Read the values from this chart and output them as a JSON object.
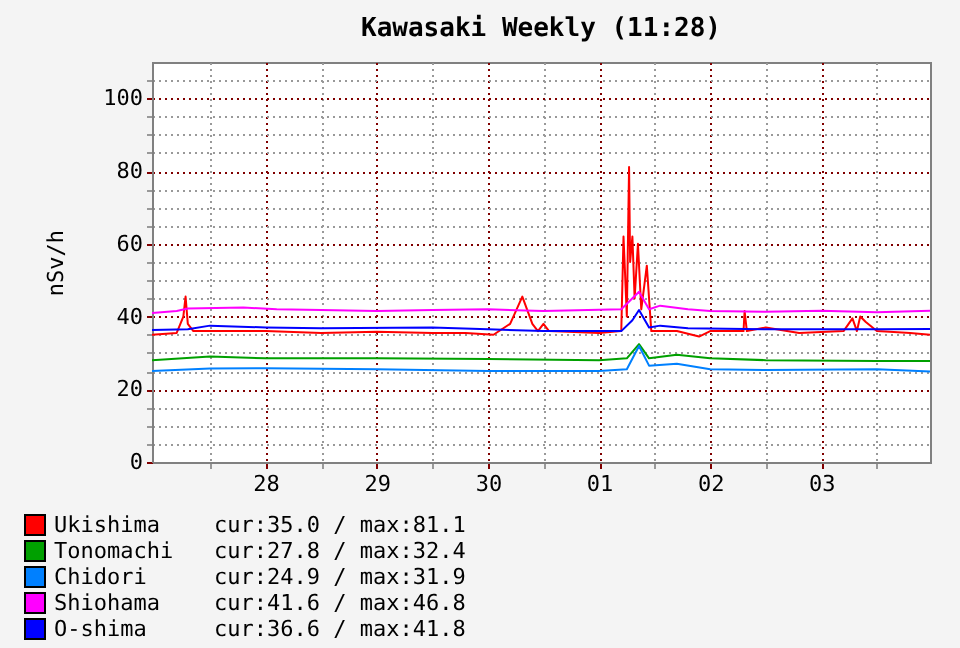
{
  "chart_data": {
    "type": "line",
    "title": "Kawasaki Weekly (11:28)",
    "ylabel": "nSv/h",
    "xlim": [
      "--04-27T11:28",
      "--05-04T11:28"
    ],
    "ylim": [
      0,
      110
    ],
    "xticks": [
      {
        "value": "--04-28",
        "label": null
      },
      {
        "value": "--04-28T12:00",
        "label": "28"
      },
      {
        "value": "--04-29",
        "label": null
      },
      {
        "value": "--04-29T12:00",
        "label": "29"
      },
      {
        "value": "--04-30",
        "label": null
      },
      {
        "value": "--04-30T12:00",
        "label": "30"
      },
      {
        "value": "--05-01",
        "label": null
      },
      {
        "value": "--05-01T12:00",
        "label": "01"
      },
      {
        "value": "--05-02",
        "label": null
      },
      {
        "value": "--05-02T12:00",
        "label": "02"
      },
      {
        "value": "--05-03",
        "label": null
      },
      {
        "value": "--05-03T12:00",
        "label": "03"
      },
      {
        "value": "--05-04",
        "label": null
      }
    ],
    "yticks": [
      0,
      {
        "value": 5,
        "label": null
      },
      {
        "value": 10,
        "label": null
      },
      {
        "value": 15,
        "label": null
      },
      20,
      {
        "value": 25,
        "label": null
      },
      {
        "value": 30,
        "label": null
      },
      {
        "value": 35,
        "label": null
      },
      40,
      {
        "value": 45,
        "label": null
      },
      {
        "value": 50,
        "label": null
      },
      {
        "value": 55,
        "label": null
      },
      60,
      {
        "value": 65,
        "label": null
      },
      {
        "value": 70,
        "label": null
      },
      {
        "value": 75,
        "label": null
      },
      80,
      {
        "value": 85,
        "label": null
      },
      {
        "value": 90,
        "label": null
      },
      {
        "value": 95,
        "label": null
      },
      100,
      {
        "value": 105,
        "label": null
      }
    ],
    "grid": true,
    "legend": "bottom",
    "line_style": "solid",
    "marker": "none",
    "annotations": [
      "cur:35.0 / max:81.1",
      "cur:27.8 / max:32.4",
      "cur:24.9 / max:31.9",
      "cur:41.6 / max:46.8",
      "cur:36.6 / max:41.8"
    ],
    "series": [
      {
        "name": "Ukishima",
        "color": "#ff0000",
        "x": [
          "--04-27T11:28",
          "--04-27T16:48",
          "--04-27T18:14",
          "--04-27T18:43",
          "--04-27T19:12",
          "--04-27T20:24",
          "--04-28T12:00",
          "--04-29",
          "--04-29T12:00",
          "--04-30",
          "--04-30T07:12",
          "--04-30T13:12",
          "--04-30T16:48",
          "--04-30T19:26",
          "--04-30T21:36",
          "--04-30T22:48",
          "--05-01",
          "--05-01T01:12",
          "--05-01T12:00",
          "--05-01T16:48",
          "--05-01T17:17",
          "--05-01T18:00",
          "--05-01T18:29",
          "--05-01T18:43",
          "--05-01T19:12",
          "--05-01T19:41",
          "--05-01T20:24",
          "--05-01T21:07",
          "--05-01T22:19",
          "--05-01T23:17",
          "--05-02T04:48",
          "--05-02T09:36",
          "--05-02T12:00",
          "--05-02T19:12",
          "--05-02T19:26",
          "--05-02T19:55",
          "--05-03",
          "--05-03T07:12",
          "--05-03T16:48",
          "--05-03T18:43",
          "--05-03T19:41",
          "--05-03T20:24",
          "--05-03T21:36",
          "--05-04",
          "--05-04T07:12",
          "--05-04T11:28"
        ],
        "values": [
          35.0,
          35.5,
          40,
          45.5,
          38,
          36,
          36,
          35.5,
          35.8,
          35.5,
          35.5,
          35,
          38,
          45.5,
          38,
          36,
          38,
          36,
          35.5,
          36,
          62,
          40,
          81.1,
          55,
          62,
          45,
          60,
          42,
          54,
          36,
          36,
          34.5,
          36,
          36,
          41.5,
          36,
          37,
          35.5,
          36,
          39.5,
          36,
          40,
          38.5,
          36,
          35.5,
          35.0
        ]
      },
      {
        "name": "Tonomachi",
        "color": "#00a000",
        "x": [
          "--04-27T11:28",
          "--04-28",
          "--04-28T12:00",
          "--04-29T12:00",
          "--04-30T12:00",
          "--05-01T12:00",
          "--05-01T18:00",
          "--05-01T20:38",
          "--05-01T22:48",
          "--05-02T04:48",
          "--05-02T12:00",
          "--05-03",
          "--05-04",
          "--05-04T11:28"
        ],
        "values": [
          28.0,
          29.0,
          28.5,
          28.5,
          28.3,
          28.0,
          28.5,
          32.4,
          28.5,
          29.5,
          28.5,
          28.0,
          27.8,
          27.8
        ]
      },
      {
        "name": "Chidori",
        "color": "#0080ff",
        "x": [
          "--04-27T11:28",
          "--04-28",
          "--04-28T12:00",
          "--04-29T12:00",
          "--04-30T12:00",
          "--05-01T12:00",
          "--05-01T18:00",
          "--05-01T20:38",
          "--05-01T22:48",
          "--05-02T04:48",
          "--05-02T12:00",
          "--05-03",
          "--05-04",
          "--05-04T11:28"
        ],
        "values": [
          25.0,
          25.7,
          25.8,
          25.5,
          25.0,
          25.0,
          25.5,
          31.9,
          26.5,
          27.0,
          25.5,
          25.3,
          25.5,
          24.9
        ]
      },
      {
        "name": "Shiohama",
        "color": "#ff00ff",
        "x": [
          "--04-27T11:28",
          "--04-27T16:48",
          "--04-27T19:12",
          "--04-28T07:12",
          "--04-28T14:24",
          "--04-29",
          "--04-29T12:00",
          "--04-30",
          "--04-30T12:00",
          "--05-01",
          "--05-01T16:48",
          "--05-01T20:38",
          "--05-01T22:48",
          "--05-02T01:12",
          "--05-02T07:12",
          "--05-02T12:00",
          "--05-03",
          "--05-03T12:00",
          "--05-04",
          "--05-04T11:28"
        ],
        "values": [
          41.0,
          41.5,
          42.2,
          42.5,
          42.0,
          41.8,
          41.5,
          41.8,
          42.0,
          41.5,
          42.0,
          46.8,
          42.0,
          43.0,
          42.0,
          41.5,
          41.3,
          41.6,
          41.2,
          41.6
        ]
      },
      {
        "name": "O-shima",
        "color": "#0000ff",
        "x": [
          "--04-27T11:28",
          "--04-27T19:12",
          "--04-28",
          "--04-28T12:00",
          "--04-29",
          "--04-30",
          "--04-30T12:00",
          "--05-01",
          "--05-01T16:48",
          "--05-01T19:12",
          "--05-01T20:38",
          "--05-01T22:48",
          "--05-02T01:12",
          "--05-02T07:12",
          "--05-03",
          "--05-04",
          "--05-04T11:28"
        ],
        "values": [
          36.3,
          36.5,
          37.5,
          37.0,
          36.8,
          37.0,
          36.5,
          36.0,
          36.0,
          39.0,
          41.8,
          37.0,
          37.5,
          36.8,
          36.5,
          36.5,
          36.6
        ]
      }
    ]
  }
}
